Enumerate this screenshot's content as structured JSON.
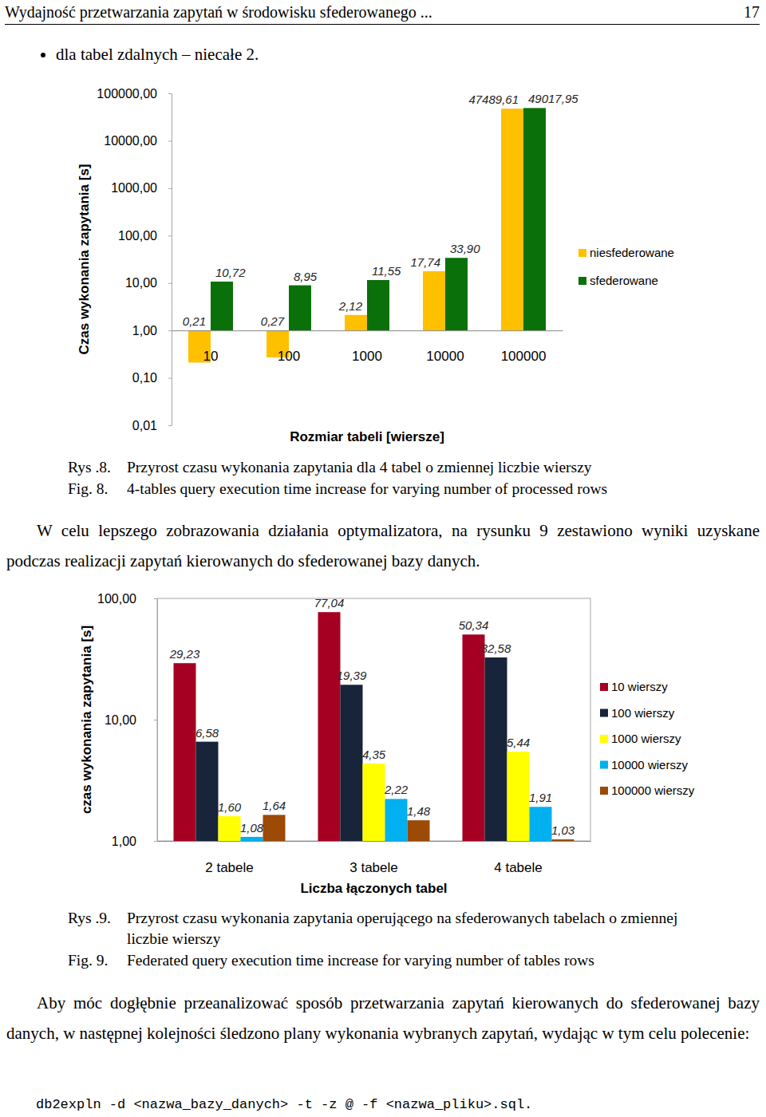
{
  "header": {
    "title": "Wydajność przetwarzania zapytań w środowisku sfederowanego ...",
    "page": 17
  },
  "bullets": [
    "dla tabel zdalnych – niecałe 2."
  ],
  "chart_data": [
    {
      "type": "bar",
      "x_label": "Rozmiar tabeli [wiersze]",
      "y_label": "Czas wykonania zapytania [s]",
      "categories": [
        "10",
        "100",
        "1000",
        "10000",
        "100000"
      ],
      "series": [
        {
          "name": "niesfederowane",
          "color": "#FFC000",
          "values": [
            0.21,
            0.27,
            2.12,
            17.74,
            47489.61
          ],
          "value_labels": [
            "0,21",
            "0,27",
            "2,12",
            "17,74",
            "47489,61"
          ]
        },
        {
          "name": "sfederowane",
          "color": "#0A700A",
          "values": [
            10.72,
            8.95,
            11.55,
            33.9,
            49017.95
          ],
          "value_labels": [
            "10,72",
            "8,95",
            "11,55",
            "33,90",
            "49017,95"
          ]
        }
      ],
      "log": "y",
      "ylim": [
        0.01,
        100000
      ],
      "yticks": [
        {
          "value": 0.01,
          "label": "0,01"
        },
        {
          "value": 0.1,
          "label": "0,10"
        },
        {
          "value": 1,
          "label": "1,00"
        },
        {
          "value": 10,
          "label": "10,00"
        },
        {
          "value": 100,
          "label": "100,00"
        },
        {
          "value": 1000,
          "label": "1000,00"
        },
        {
          "value": 10000,
          "label": "10000,00"
        },
        {
          "value": 100000,
          "label": "100000,00"
        }
      ],
      "grid": false,
      "legend": "right",
      "data_labels": true
    },
    {
      "type": "bar",
      "x_label": "Liczba łączonych tabel",
      "y_label": "czas wykonania zapytania [s]",
      "categories": [
        "2 tabele",
        "3 tabele",
        "4 tabele"
      ],
      "series": [
        {
          "name": "10 wierszy",
          "color": "#A50021",
          "values": [
            29.23,
            77.04,
            50.34
          ],
          "value_labels": [
            "29,23",
            "77,04",
            "50,34"
          ]
        },
        {
          "name": "100 wierszy",
          "color": "#172439",
          "values": [
            6.58,
            19.39,
            32.58
          ],
          "value_labels": [
            "6,58",
            "19,39",
            "32,58"
          ]
        },
        {
          "name": "1000 wierszy",
          "color": "#FFFF00",
          "values": [
            1.6,
            4.35,
            5.44
          ],
          "value_labels": [
            "1,60",
            "4,35",
            "5,44"
          ]
        },
        {
          "name": "10000 wierszy",
          "color": "#00B0F0",
          "values": [
            1.08,
            2.22,
            1.91
          ],
          "value_labels": [
            "1,08",
            "2,22",
            "1,91"
          ]
        },
        {
          "name": "100000 wierszy",
          "color": "#9C4A06",
          "values": [
            1.64,
            1.48,
            1.03
          ],
          "value_labels": [
            "1,64",
            "1,48",
            "1,03"
          ]
        }
      ],
      "log": "y",
      "ylim": [
        1,
        100
      ],
      "yticks": [
        {
          "value": 1,
          "label": "1,00"
        },
        {
          "value": 10,
          "label": "10,00"
        },
        {
          "value": 100,
          "label": "100,00"
        }
      ],
      "grid": false,
      "legend": "right",
      "data_labels": true
    }
  ],
  "captions": [
    {
      "label": "Rys .8.",
      "text": "Przyrost czasu wykonania zapytania dla 4 tabel o zmiennej liczbie wierszy",
      "label_en": "Fig. 8.",
      "text_en": "4-tables query execution time increase for varying number of processed rows"
    },
    {
      "label": "Rys .9.",
      "text": "Przyrost czasu wykonania zapytania operującego na sfederowanych tabelach o zmiennej liczbie wierszy",
      "label_en": "Fig. 9.",
      "text_en": "Federated query execution time increase for varying number of tables rows"
    }
  ],
  "paragraphs": [
    "W celu lepszego zobrazowania działania optymalizatora, na rysunku 9 zestawiono wyniki uzyskane podczas realizacji zapytań kierowanych do sfederowanej bazy danych.",
    "Aby móc dogłębnie przeanalizować sposób przetwarzania zapytań kierowanych do sfederowanej bazy danych, w następnej kolejności śledzono plany wykonania wybranych zapytań, wydając w tym celu polecenie:"
  ],
  "code": "db2expln -d <nazwa_bazy_danych> -t -z @ -f <nazwa_pliku>.sql."
}
